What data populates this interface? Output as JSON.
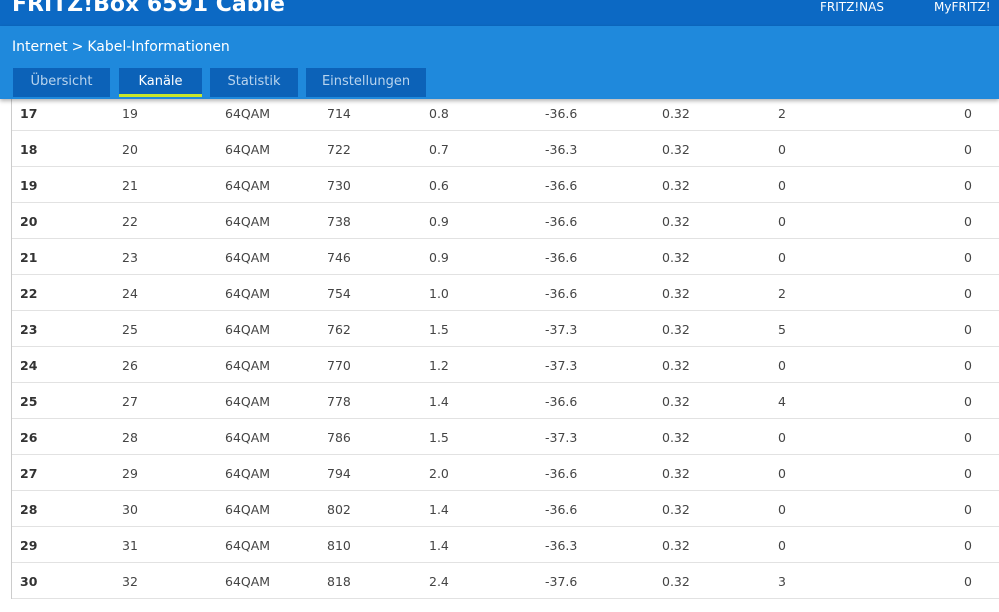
{
  "header": {
    "title": "FRITZ!Box 6591 Cable",
    "links": [
      "FRITZ!NAS",
      "MyFRITZ!"
    ]
  },
  "breadcrumb": {
    "parent": "Internet",
    "separator": ">",
    "current": "Kabel-Informationen"
  },
  "tabs": [
    "Übersicht",
    "Kanäle",
    "Statistik",
    "Einstellungen"
  ],
  "active_tab": 1,
  "table": {
    "rows": [
      [
        "17",
        "19",
        "64QAM",
        "714",
        "0.8",
        "-36.6",
        "0.32",
        "2",
        "0"
      ],
      [
        "18",
        "20",
        "64QAM",
        "722",
        "0.7",
        "-36.3",
        "0.32",
        "0",
        "0"
      ],
      [
        "19",
        "21",
        "64QAM",
        "730",
        "0.6",
        "-36.6",
        "0.32",
        "0",
        "0"
      ],
      [
        "20",
        "22",
        "64QAM",
        "738",
        "0.9",
        "-36.6",
        "0.32",
        "0",
        "0"
      ],
      [
        "21",
        "23",
        "64QAM",
        "746",
        "0.9",
        "-36.6",
        "0.32",
        "0",
        "0"
      ],
      [
        "22",
        "24",
        "64QAM",
        "754",
        "1.0",
        "-36.6",
        "0.32",
        "2",
        "0"
      ],
      [
        "23",
        "25",
        "64QAM",
        "762",
        "1.5",
        "-37.3",
        "0.32",
        "5",
        "0"
      ],
      [
        "24",
        "26",
        "64QAM",
        "770",
        "1.2",
        "-37.3",
        "0.32",
        "0",
        "0"
      ],
      [
        "25",
        "27",
        "64QAM",
        "778",
        "1.4",
        "-36.6",
        "0.32",
        "4",
        "0"
      ],
      [
        "26",
        "28",
        "64QAM",
        "786",
        "1.5",
        "-37.3",
        "0.32",
        "0",
        "0"
      ],
      [
        "27",
        "29",
        "64QAM",
        "794",
        "2.0",
        "-36.6",
        "0.32",
        "0",
        "0"
      ],
      [
        "28",
        "30",
        "64QAM",
        "802",
        "1.4",
        "-36.6",
        "0.32",
        "0",
        "0"
      ],
      [
        "29",
        "31",
        "64QAM",
        "810",
        "1.4",
        "-36.3",
        "0.32",
        "0",
        "0"
      ],
      [
        "30",
        "32",
        "64QAM",
        "818",
        "2.4",
        "-37.6",
        "0.32",
        "3",
        "0"
      ]
    ]
  }
}
